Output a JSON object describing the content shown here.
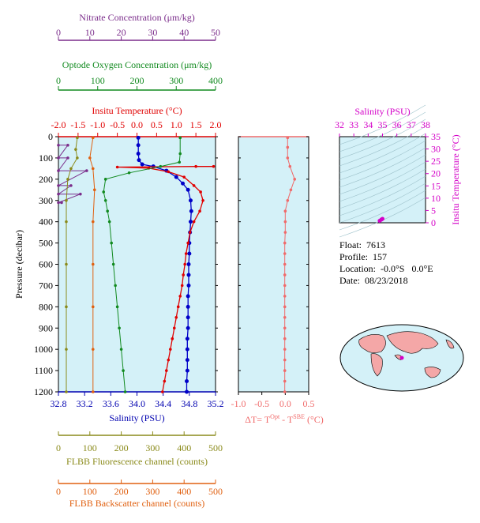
{
  "info": {
    "float_label": "Float:",
    "float_value": "7613",
    "profile_label": "Profile:",
    "profile_value": "157",
    "location_label": "Location:",
    "location_value": "-0.0°S   0.0°E",
    "date_label": "Date:",
    "date_value": "08/23/2018"
  },
  "chart_data": [
    {
      "id": "main_profile",
      "type": "line",
      "ylabel": "Pressure (decibar)",
      "ylim": [
        1200,
        0
      ],
      "yticks": [
        0,
        100,
        200,
        300,
        400,
        500,
        600,
        700,
        800,
        900,
        1000,
        1100,
        1200
      ],
      "background": "#d4f1f8",
      "axes": {
        "nitrate": {
          "label": "Nitrate Concentration (μm/kg)",
          "range": [
            0,
            50
          ],
          "ticks": [
            0,
            10,
            20,
            30,
            40,
            50
          ],
          "color": "#7b2d8b",
          "position": "top"
        },
        "oxygen": {
          "label": "Optode Oxygen Concentration (μm/kg)",
          "range": [
            0,
            400
          ],
          "ticks": [
            0,
            100,
            200,
            300,
            400
          ],
          "color": "#118a1f",
          "position": "top"
        },
        "temperature": {
          "label": "Insitu Temperature (°C)",
          "range": [
            -2,
            2
          ],
          "ticks": [
            "-2.0",
            "-1.5",
            "-1.0",
            "-0.5",
            "0.0",
            "0.5",
            "1.0",
            "1.5",
            "2.0"
          ],
          "color": "#e00000",
          "position": "top"
        },
        "salinity": {
          "label": "Salinity (PSU)",
          "range": [
            32.8,
            35.2
          ],
          "ticks": [
            "32.8",
            "33.2",
            "33.6",
            "34.0",
            "34.4",
            "34.8",
            "35.2"
          ],
          "color": "#0000b0",
          "position": "bottom"
        },
        "fluorescence": {
          "label": "FLBB Fluorescence channel (counts)",
          "range": [
            0,
            500
          ],
          "ticks": [
            0,
            100,
            200,
            300,
            400,
            500
          ],
          "color": "#8a8a1a",
          "position": "bottom"
        },
        "backscatter": {
          "label": "FLBB Backscatter channel (counts)",
          "range": [
            0,
            500
          ],
          "ticks": [
            0,
            100,
            200,
            300,
            400,
            500
          ],
          "color": "#e06010",
          "position": "bottom"
        }
      },
      "series": [
        {
          "name": "Salinity (PSU)",
          "axis": "salinity",
          "color": "#0000c8",
          "points": [
            [
              34.02,
              5
            ],
            [
              34.02,
              40
            ],
            [
              34.02,
              80
            ],
            [
              34.03,
              110
            ],
            [
              34.08,
              130
            ],
            [
              34.25,
              140
            ],
            [
              34.45,
              160
            ],
            [
              34.6,
              190
            ],
            [
              34.7,
              220
            ],
            [
              34.78,
              250
            ],
            [
              34.82,
              300
            ],
            [
              34.83,
              350
            ],
            [
              34.82,
              400
            ],
            [
              34.81,
              450
            ],
            [
              34.8,
              500
            ],
            [
              34.8,
              550
            ],
            [
              34.79,
              600
            ],
            [
              34.79,
              650
            ],
            [
              34.79,
              700
            ],
            [
              34.78,
              750
            ],
            [
              34.78,
              800
            ],
            [
              34.78,
              850
            ],
            [
              34.78,
              900
            ],
            [
              34.77,
              950
            ],
            [
              34.77,
              1000
            ],
            [
              34.77,
              1050
            ],
            [
              34.77,
              1100
            ],
            [
              34.76,
              1150
            ],
            [
              34.76,
              1200
            ]
          ]
        },
        {
          "name": "Insitu Temperature",
          "axis": "temperature",
          "color": "#e00000",
          "points": [
            [
              1.95,
              140
            ],
            [
              1.5,
              140
            ],
            [
              -0.5,
              143
            ],
            [
              0.3,
              148
            ],
            [
              0.8,
              165
            ],
            [
              1.2,
              190
            ],
            [
              1.45,
              230
            ],
            [
              1.62,
              260
            ],
            [
              1.68,
              300
            ],
            [
              1.6,
              350
            ],
            [
              1.45,
              400
            ],
            [
              1.35,
              450
            ],
            [
              1.3,
              500
            ],
            [
              1.25,
              550
            ],
            [
              1.22,
              600
            ],
            [
              1.18,
              650
            ],
            [
              1.15,
              700
            ],
            [
              1.1,
              750
            ],
            [
              1.05,
              800
            ],
            [
              1.0,
              850
            ],
            [
              0.95,
              900
            ],
            [
              0.9,
              950
            ],
            [
              0.85,
              1000
            ],
            [
              0.8,
              1050
            ],
            [
              0.75,
              1100
            ],
            [
              0.7,
              1150
            ],
            [
              0.65,
              1200
            ]
          ]
        },
        {
          "name": "Optode Oxygen",
          "axis": "oxygen",
          "color": "#118a1f",
          "points": [
            [
              310,
              5
            ],
            [
              310,
              80
            ],
            [
              308,
              120
            ],
            [
              260,
              140
            ],
            [
              180,
              170
            ],
            [
              120,
              200
            ],
            [
              115,
              260
            ],
            [
              120,
              300
            ],
            [
              125,
              350
            ],
            [
              130,
              400
            ],
            [
              135,
              500
            ],
            [
              140,
              600
            ],
            [
              145,
              700
            ],
            [
              150,
              800
            ],
            [
              155,
              900
            ],
            [
              160,
              1000
            ],
            [
              165,
              1100
            ],
            [
              170,
              1200
            ]
          ]
        },
        {
          "name": "Nitrate",
          "axis": "nitrate",
          "color": "#7b2d8b",
          "points": [
            [
              0,
              40
            ],
            [
              3,
              40
            ],
            [
              0,
              100
            ],
            [
              3,
              100
            ],
            [
              0,
              160
            ],
            [
              9,
              160
            ],
            [
              0,
              230
            ],
            [
              4,
              230
            ],
            [
              0,
              270
            ],
            [
              7,
              270
            ],
            [
              0,
              310
            ],
            [
              1,
              310
            ]
          ]
        },
        {
          "name": "FLBB Fluorescence",
          "axis": "fluorescence",
          "color": "#8a8a1a",
          "points": [
            [
              60,
              5
            ],
            [
              55,
              60
            ],
            [
              60,
              100
            ],
            [
              40,
              150
            ],
            [
              30,
              200
            ],
            [
              25,
              300
            ],
            [
              25,
              400
            ],
            [
              25,
              600
            ],
            [
              25,
              800
            ],
            [
              25,
              1000
            ],
            [
              25,
              1200
            ]
          ]
        },
        {
          "name": "FLBB Backscatter",
          "axis": "backscatter",
          "color": "#e06010",
          "points": [
            [
              110,
              5
            ],
            [
              100,
              100
            ],
            [
              110,
              150
            ],
            [
              115,
              250
            ],
            [
              110,
              400
            ],
            [
              110,
              600
            ],
            [
              110,
              800
            ],
            [
              110,
              1000
            ],
            [
              110,
              1200
            ]
          ]
        }
      ]
    },
    {
      "id": "delta_t",
      "type": "line",
      "xlabel": "ΔT= T^Opt - T^SBE (°C)",
      "xlim": [
        -1.0,
        0.5
      ],
      "xticks": [
        "-1.0",
        "-0.5",
        "0.0",
        "0.5"
      ],
      "ylim": [
        1200,
        0
      ],
      "series": [
        {
          "name": "ΔT",
          "color": "#f06a6a",
          "points": [
            [
              0.05,
              5
            ],
            [
              0.05,
              50
            ],
            [
              0.05,
              100
            ],
            [
              0.1,
              140
            ],
            [
              0.2,
              200
            ],
            [
              0.12,
              250
            ],
            [
              0.05,
              300
            ],
            [
              0.0,
              350
            ],
            [
              0.0,
              400
            ],
            [
              0.0,
              450
            ],
            [
              -0.01,
              500
            ],
            [
              -0.01,
              550
            ],
            [
              -0.01,
              600
            ],
            [
              -0.01,
              650
            ],
            [
              -0.01,
              700
            ],
            [
              -0.01,
              750
            ],
            [
              -0.01,
              800
            ],
            [
              -0.01,
              850
            ],
            [
              -0.01,
              900
            ],
            [
              -0.01,
              950
            ],
            [
              -0.01,
              1000
            ],
            [
              -0.01,
              1050
            ],
            [
              -0.01,
              1100
            ],
            [
              -0.01,
              1150
            ],
            [
              -0.01,
              1200
            ]
          ]
        }
      ]
    },
    {
      "id": "ts_diagram",
      "type": "scatter",
      "xlabel": "Salinity (PSU)",
      "ylabel": "Insitu Temperature (°C)",
      "xlim": [
        32,
        38
      ],
      "ylim": [
        0,
        35
      ],
      "xticks": [
        "32",
        "33",
        "34",
        "35",
        "36",
        "37",
        "38"
      ],
      "yticks": [
        "0",
        "5",
        "10",
        "15",
        "20",
        "25",
        "30",
        "35"
      ],
      "color": "#d400c8",
      "points": [
        [
          34.8,
          0.8
        ],
        [
          34.9,
          1.2
        ],
        [
          35.0,
          1.6
        ],
        [
          34.95,
          1.4
        ]
      ]
    }
  ]
}
